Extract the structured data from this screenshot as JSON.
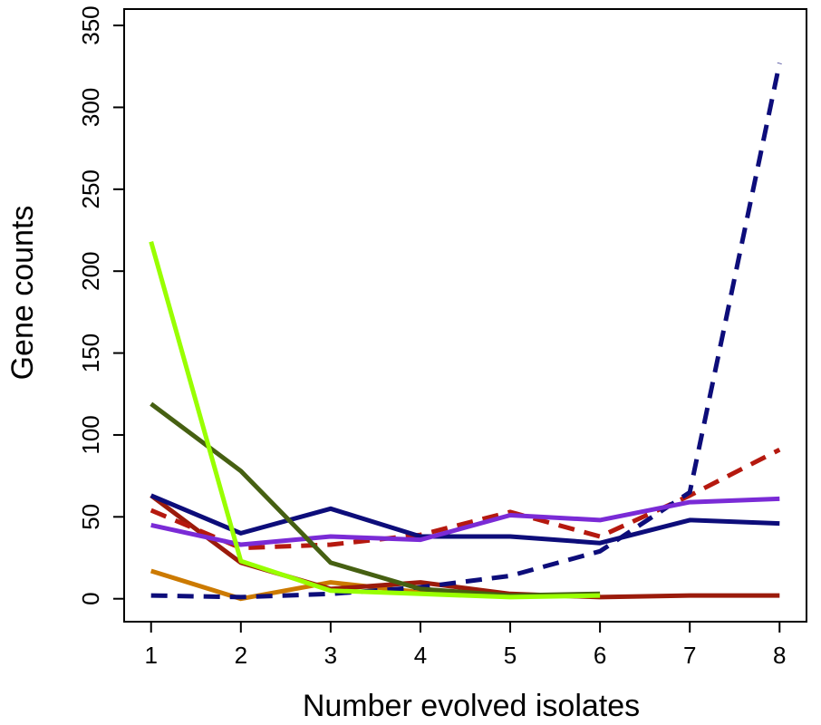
{
  "chart_data": {
    "type": "line",
    "xlabel": "Number evolved isolates",
    "ylabel": "Gene counts",
    "xlim": [
      0.7,
      8.3
    ],
    "ylim": [
      -14,
      360
    ],
    "x_ticks": [
      1,
      2,
      3,
      4,
      5,
      6,
      7,
      8
    ],
    "y_ticks": [
      0,
      50,
      100,
      150,
      200,
      250,
      300,
      350
    ],
    "grid": false,
    "series": [
      {
        "color": "#cc7a00",
        "style": "solid",
        "x": [
          1,
          2,
          3,
          4,
          5,
          6
        ],
        "values": [
          17,
          0,
          10,
          4,
          2,
          2
        ]
      },
      {
        "color": "#9b1b0b",
        "style": "solid",
        "x": [
          1,
          2,
          3,
          4,
          5,
          6,
          7,
          8
        ],
        "values": [
          63,
          22,
          6,
          10,
          3,
          1,
          2,
          2
        ]
      },
      {
        "color": "#b5190f",
        "style": "dashed",
        "x": [
          1,
          2,
          3,
          4,
          5,
          6,
          7,
          8
        ],
        "values": [
          54,
          31,
          33,
          39,
          53,
          38,
          63,
          91
        ]
      },
      {
        "color": "#0d0d7a",
        "style": "dashed",
        "x": [
          1,
          2,
          3,
          4,
          5,
          6,
          7,
          8
        ],
        "values": [
          2,
          1,
          3,
          7,
          14,
          29,
          65,
          327
        ]
      },
      {
        "color": "#0d0d7a",
        "style": "solid",
        "x": [
          1,
          2,
          3,
          4,
          5,
          6,
          7,
          8
        ],
        "values": [
          63,
          40,
          55,
          38,
          38,
          34,
          48,
          46
        ]
      },
      {
        "color": "#7a2bd6",
        "style": "solid",
        "x": [
          1,
          2,
          3,
          4,
          5,
          6,
          7,
          8
        ],
        "values": [
          45,
          33,
          38,
          36,
          51,
          48,
          59,
          61
        ]
      },
      {
        "color": "#466012",
        "style": "solid",
        "x": [
          1,
          2,
          3,
          4,
          5,
          6
        ],
        "values": [
          119,
          78,
          22,
          6,
          2,
          3
        ]
      },
      {
        "color": "#99ff00",
        "style": "solid",
        "x": [
          1,
          2,
          3,
          4,
          5,
          6
        ],
        "values": [
          218,
          23,
          5,
          3,
          1,
          2
        ]
      }
    ]
  }
}
